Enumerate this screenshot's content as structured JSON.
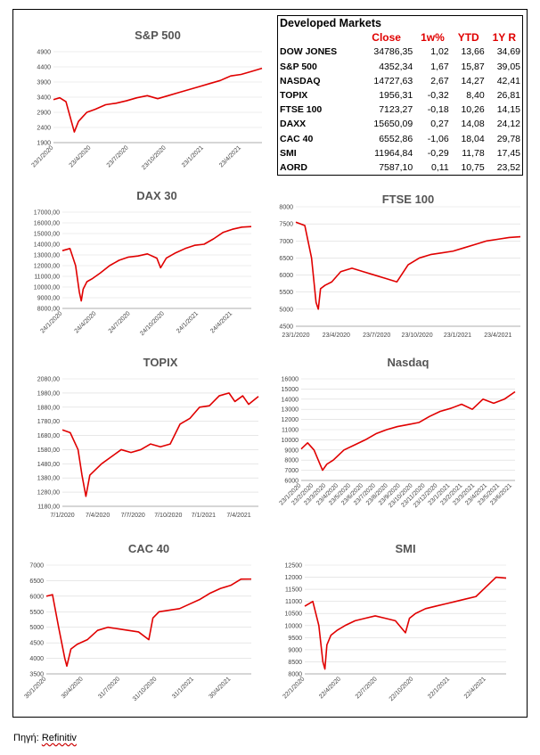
{
  "market_table": {
    "title": "Developed Markets",
    "headers": [
      "Close",
      "1w%",
      "YTD",
      "1Y R"
    ],
    "rows": [
      {
        "name": "DOW JONES",
        "close": "34786,35",
        "w1": "1,02",
        "ytd": "13,66",
        "y1": "34,69"
      },
      {
        "name": "S&P 500",
        "close": "4352,34",
        "w1": "1,67",
        "ytd": "15,87",
        "y1": "39,05"
      },
      {
        "name": "NASDAQ",
        "close": "14727,63",
        "w1": "2,67",
        "ytd": "14,27",
        "y1": "42,41"
      },
      {
        "name": "TOPIX",
        "close": "1956,31",
        "w1": "-0,32",
        "ytd": "8,40",
        "y1": "26,81"
      },
      {
        "name": "FTSE 100",
        "close": "7123,27",
        "w1": "-0,18",
        "ytd": "10,26",
        "y1": "14,15"
      },
      {
        "name": "DAXX",
        "close": "15650,09",
        "w1": "0,27",
        "ytd": "14,08",
        "y1": "24,12"
      },
      {
        "name": "CAC 40",
        "close": "6552,86",
        "w1": "-1,06",
        "ytd": "18,04",
        "y1": "29,78"
      },
      {
        "name": "SMI",
        "close": "11964,84",
        "w1": "-0,29",
        "ytd": "11,78",
        "y1": "17,45"
      },
      {
        "name": "AORD",
        "close": "7587,10",
        "w1": "0,11",
        "ytd": "10,75",
        "y1": "23,52"
      }
    ]
  },
  "source": {
    "label": "Πηγή:",
    "value": "Refinitiv"
  },
  "colors": {
    "line": "#e00000",
    "grid": "#d9d9d9",
    "table_header": "#e00000"
  },
  "chart_data": [
    {
      "type": "line",
      "title": "S&P 500",
      "yticks": [
        "4900",
        "4400",
        "3900",
        "3400",
        "2900",
        "2400",
        "1900"
      ],
      "ylim": [
        1900,
        4900
      ],
      "xticks": [
        "23/1/2020",
        "23/4/2020",
        "23/7/2020",
        "23/10/2020",
        "23/1/2021",
        "23/4/2021"
      ],
      "x_pos": [
        0,
        0.18,
        0.36,
        0.54,
        0.72,
        0.9
      ],
      "series": [
        {
          "x": [
            0,
            0.03,
            0.06,
            0.09,
            0.1,
            0.12,
            0.14,
            0.16,
            0.2,
            0.25,
            0.3,
            0.35,
            0.4,
            0.45,
            0.5,
            0.55,
            0.6,
            0.65,
            0.7,
            0.75,
            0.8,
            0.85,
            0.9,
            0.95,
            1.0
          ],
          "y": [
            3320,
            3380,
            3250,
            2500,
            2250,
            2600,
            2750,
            2900,
            3000,
            3150,
            3200,
            3280,
            3380,
            3450,
            3350,
            3450,
            3550,
            3650,
            3750,
            3850,
            3950,
            4100,
            4150,
            4250,
            4352
          ]
        }
      ]
    },
    {
      "type": "line",
      "title": "DAX 30",
      "yticks": [
        "17000,00",
        "16000,00",
        "15000,00",
        "14000,00",
        "13000,00",
        "12000,00",
        "11000,00",
        "10000,00",
        "9000,00",
        "8000,00"
      ],
      "ylim": [
        8000,
        17000
      ],
      "xticks": [
        "24/1/2020",
        "24/4/2020",
        "24/7/2020",
        "24/10/2020",
        "24/1/2021",
        "24/4/2021"
      ],
      "x_pos": [
        0,
        0.18,
        0.36,
        0.54,
        0.72,
        0.9
      ],
      "series": [
        {
          "x": [
            0,
            0.04,
            0.07,
            0.09,
            0.1,
            0.11,
            0.13,
            0.16,
            0.2,
            0.25,
            0.3,
            0.35,
            0.4,
            0.45,
            0.5,
            0.52,
            0.55,
            0.6,
            0.65,
            0.7,
            0.75,
            0.8,
            0.85,
            0.9,
            0.95,
            1.0
          ],
          "y": [
            13400,
            13600,
            12000,
            9500,
            8700,
            9800,
            10500,
            10800,
            11300,
            12000,
            12500,
            12800,
            12900,
            13100,
            12700,
            11800,
            12700,
            13200,
            13600,
            13900,
            14000,
            14500,
            15100,
            15400,
            15600,
            15650
          ]
        }
      ]
    },
    {
      "type": "line",
      "title": "FTSE 100",
      "yticks": [
        "8000",
        "7500",
        "7000",
        "6500",
        "6000",
        "5500",
        "5000",
        "4500"
      ],
      "ylim": [
        4500,
        8000
      ],
      "xticks": [
        "23/1/2020",
        "23/4/2020",
        "23/7/2020",
        "23/10/2020",
        "23/1/2021",
        "23/4/2021"
      ],
      "x_pos": [
        0,
        0.18,
        0.36,
        0.54,
        0.72,
        0.9
      ],
      "series": [
        {
          "x": [
            0,
            0.04,
            0.07,
            0.09,
            0.1,
            0.11,
            0.13,
            0.16,
            0.2,
            0.25,
            0.3,
            0.35,
            0.4,
            0.45,
            0.5,
            0.55,
            0.6,
            0.65,
            0.7,
            0.75,
            0.8,
            0.85,
            0.9,
            0.95,
            1.0
          ],
          "y": [
            7550,
            7450,
            6500,
            5200,
            5000,
            5600,
            5700,
            5800,
            6100,
            6200,
            6100,
            6000,
            5900,
            5800,
            6300,
            6500,
            6600,
            6650,
            6700,
            6800,
            6900,
            7000,
            7050,
            7100,
            7123
          ]
        }
      ]
    },
    {
      "type": "line",
      "title": "TOPIX",
      "yticks": [
        "2080,00",
        "1980,00",
        "1880,00",
        "1780,00",
        "1680,00",
        "1580,00",
        "1480,00",
        "1380,00",
        "1280,00",
        "1180,00"
      ],
      "ylim": [
        1180,
        2080
      ],
      "xticks": [
        "7/1/2020",
        "7/4/2020",
        "7/7/2020",
        "7/10/2020",
        "7/1/2021",
        "7/4/2021"
      ],
      "x_pos": [
        0,
        0.18,
        0.36,
        0.54,
        0.72,
        0.9
      ],
      "series": [
        {
          "x": [
            0,
            0.04,
            0.08,
            0.1,
            0.12,
            0.14,
            0.17,
            0.2,
            0.25,
            0.3,
            0.35,
            0.4,
            0.45,
            0.5,
            0.55,
            0.6,
            0.65,
            0.7,
            0.75,
            0.8,
            0.85,
            0.88,
            0.92,
            0.95,
            1.0
          ],
          "y": [
            1720,
            1700,
            1580,
            1400,
            1250,
            1400,
            1440,
            1480,
            1530,
            1580,
            1560,
            1580,
            1620,
            1600,
            1620,
            1760,
            1800,
            1880,
            1890,
            1960,
            1980,
            1920,
            1960,
            1900,
            1956
          ]
        }
      ]
    },
    {
      "type": "line",
      "title": "Nasdaq",
      "yticks": [
        "16000",
        "15000",
        "14000",
        "13000",
        "12000",
        "11000",
        "10000",
        "9000",
        "8000",
        "7000",
        "6000"
      ],
      "ylim": [
        6000,
        16000
      ],
      "xticks": [
        "23/1/2020",
        "23/2/2020",
        "23/3/2020",
        "23/4/2020",
        "23/5/2020",
        "23/6/2020",
        "23/7/2020",
        "23/8/2020",
        "23/9/2020",
        "23/10/2020",
        "23/11/2020",
        "23/12/2020",
        "23/1/2021",
        "23/2/2021",
        "23/3/2021",
        "23/4/2021",
        "23/5/2021",
        "23/6/2021"
      ],
      "x_pos": [
        0,
        0.058,
        0.116,
        0.174,
        0.232,
        0.29,
        0.348,
        0.406,
        0.464,
        0.522,
        0.58,
        0.638,
        0.696,
        0.754,
        0.812,
        0.87,
        0.928,
        0.986
      ],
      "series": [
        {
          "x": [
            0,
            0.03,
            0.06,
            0.09,
            0.1,
            0.12,
            0.15,
            0.2,
            0.25,
            0.3,
            0.35,
            0.4,
            0.45,
            0.5,
            0.55,
            0.6,
            0.65,
            0.7,
            0.75,
            0.8,
            0.85,
            0.9,
            0.95,
            1.0
          ],
          "y": [
            9100,
            9700,
            9000,
            7500,
            7000,
            7600,
            8000,
            9000,
            9500,
            10000,
            10600,
            11000,
            11300,
            11500,
            11700,
            12300,
            12800,
            13100,
            13500,
            13000,
            14000,
            13600,
            14000,
            14727
          ]
        }
      ]
    },
    {
      "type": "line",
      "title": "CAC 40",
      "yticks": [
        "7000",
        "6500",
        "6000",
        "5500",
        "5000",
        "4500",
        "4000",
        "3500"
      ],
      "ylim": [
        3500,
        7000
      ],
      "xticks": [
        "30/1/2020",
        "30/4/2020",
        "31/7/2020",
        "31/10/2020",
        "31/1/2021",
        "30/4/2021"
      ],
      "x_pos": [
        0,
        0.18,
        0.36,
        0.54,
        0.72,
        0.9
      ],
      "series": [
        {
          "x": [
            0,
            0.03,
            0.06,
            0.09,
            0.1,
            0.12,
            0.15,
            0.2,
            0.25,
            0.3,
            0.35,
            0.4,
            0.45,
            0.5,
            0.52,
            0.55,
            0.6,
            0.65,
            0.7,
            0.75,
            0.8,
            0.85,
            0.9,
            0.95,
            1.0
          ],
          "y": [
            6000,
            6050,
            5000,
            4000,
            3750,
            4300,
            4450,
            4600,
            4900,
            5000,
            4950,
            4900,
            4850,
            4600,
            5300,
            5500,
            5550,
            5600,
            5750,
            5900,
            6100,
            6250,
            6350,
            6550,
            6552
          ]
        }
      ]
    },
    {
      "type": "line",
      "title": "SMI",
      "yticks": [
        "12500",
        "12000",
        "11500",
        "11000",
        "10500",
        "10000",
        "9500",
        "9000",
        "8500",
        "8000"
      ],
      "ylim": [
        8000,
        12500
      ],
      "xticks": [
        "22/1/2020",
        "22/4/2020",
        "22/7/2020",
        "22/10/2020",
        "22/1/2021",
        "22/4/2021"
      ],
      "x_pos": [
        0,
        0.18,
        0.36,
        0.54,
        0.72,
        0.9
      ],
      "series": [
        {
          "x": [
            0,
            0.04,
            0.07,
            0.09,
            0.1,
            0.11,
            0.13,
            0.16,
            0.2,
            0.25,
            0.3,
            0.35,
            0.4,
            0.45,
            0.5,
            0.52,
            0.55,
            0.6,
            0.65,
            0.7,
            0.75,
            0.8,
            0.85,
            0.9,
            0.95,
            1.0
          ],
          "y": [
            10800,
            11000,
            10000,
            8500,
            8200,
            9200,
            9600,
            9800,
            10000,
            10200,
            10300,
            10400,
            10300,
            10200,
            9700,
            10300,
            10500,
            10700,
            10800,
            10900,
            11000,
            11100,
            11200,
            11600,
            12000,
            11964
          ]
        }
      ]
    }
  ]
}
